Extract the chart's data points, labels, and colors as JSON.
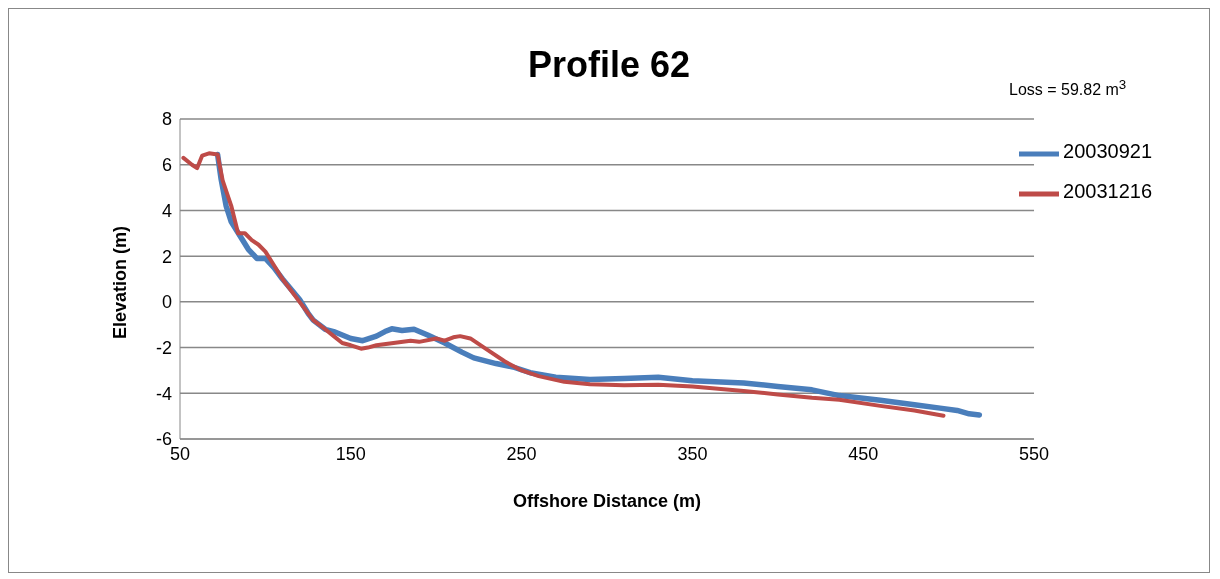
{
  "chart_data": {
    "type": "line",
    "title": "Profile 62",
    "xlabel": "Offshore Distance (m)",
    "ylabel": "Elevation (m)",
    "annotations": [
      "Loss = 59.82 m$^{3}$"
    ],
    "xlim": [
      50,
      550
    ],
    "xticks": [
      50,
      150,
      250,
      350,
      450,
      550
    ],
    "ylim": [
      -6,
      8
    ],
    "yticks": [
      -6,
      -4,
      -2,
      0,
      2,
      4,
      6,
      8
    ],
    "grid": "y",
    "legend": "top right",
    "marker": "none",
    "line_style": "solid",
    "series": [
      {
        "name": "20030921",
        "color": "#4a7ebb",
        "x": [
          72,
          74,
          77,
          80,
          85,
          90,
          95,
          100,
          105,
          110,
          120,
          125,
          128,
          135,
          140,
          150,
          157,
          165,
          170,
          174,
          180,
          187,
          195,
          205,
          215,
          222,
          235,
          245,
          255,
          270,
          290,
          310,
          330,
          350,
          380,
          400,
          420,
          436,
          460,
          480,
          495,
          505,
          512,
          518
        ],
        "values": [
          6.45,
          5.4,
          4.2,
          3.5,
          2.9,
          2.3,
          1.9,
          1.9,
          1.5,
          1.0,
          0.1,
          -0.5,
          -0.8,
          -1.2,
          -1.3,
          -1.6,
          -1.7,
          -1.5,
          -1.3,
          -1.18,
          -1.25,
          -1.2,
          -1.45,
          -1.8,
          -2.2,
          -2.45,
          -2.7,
          -2.85,
          -3.1,
          -3.3,
          -3.4,
          -3.35,
          -3.3,
          -3.45,
          -3.55,
          -3.7,
          -3.85,
          -4.1,
          -4.3,
          -4.5,
          -4.65,
          -4.75,
          -4.9,
          -4.95
        ]
      },
      {
        "name": "20031216",
        "color": "#be4b48",
        "x": [
          52,
          57,
          60,
          63,
          67,
          72,
          75,
          80,
          84,
          88,
          92,
          96,
          100,
          105,
          110,
          120,
          128,
          135,
          140,
          145,
          150,
          156,
          160,
          165,
          175,
          185,
          190,
          200,
          205,
          210,
          214,
          220,
          230,
          240,
          250,
          260,
          275,
          290,
          310,
          330,
          350,
          380,
          400,
          420,
          436,
          460,
          480,
          497
        ],
        "values": [
          6.3,
          6.0,
          5.85,
          6.4,
          6.5,
          6.45,
          5.3,
          4.2,
          3.0,
          3.0,
          2.7,
          2.5,
          2.2,
          1.6,
          1.0,
          0.0,
          -0.8,
          -1.2,
          -1.5,
          -1.8,
          -1.9,
          -2.05,
          -2.0,
          -1.9,
          -1.8,
          -1.7,
          -1.75,
          -1.6,
          -1.7,
          -1.55,
          -1.5,
          -1.6,
          -2.1,
          -2.6,
          -3.0,
          -3.25,
          -3.5,
          -3.6,
          -3.65,
          -3.63,
          -3.7,
          -3.9,
          -4.05,
          -4.2,
          -4.28,
          -4.55,
          -4.75,
          -4.98
        ]
      }
    ]
  }
}
